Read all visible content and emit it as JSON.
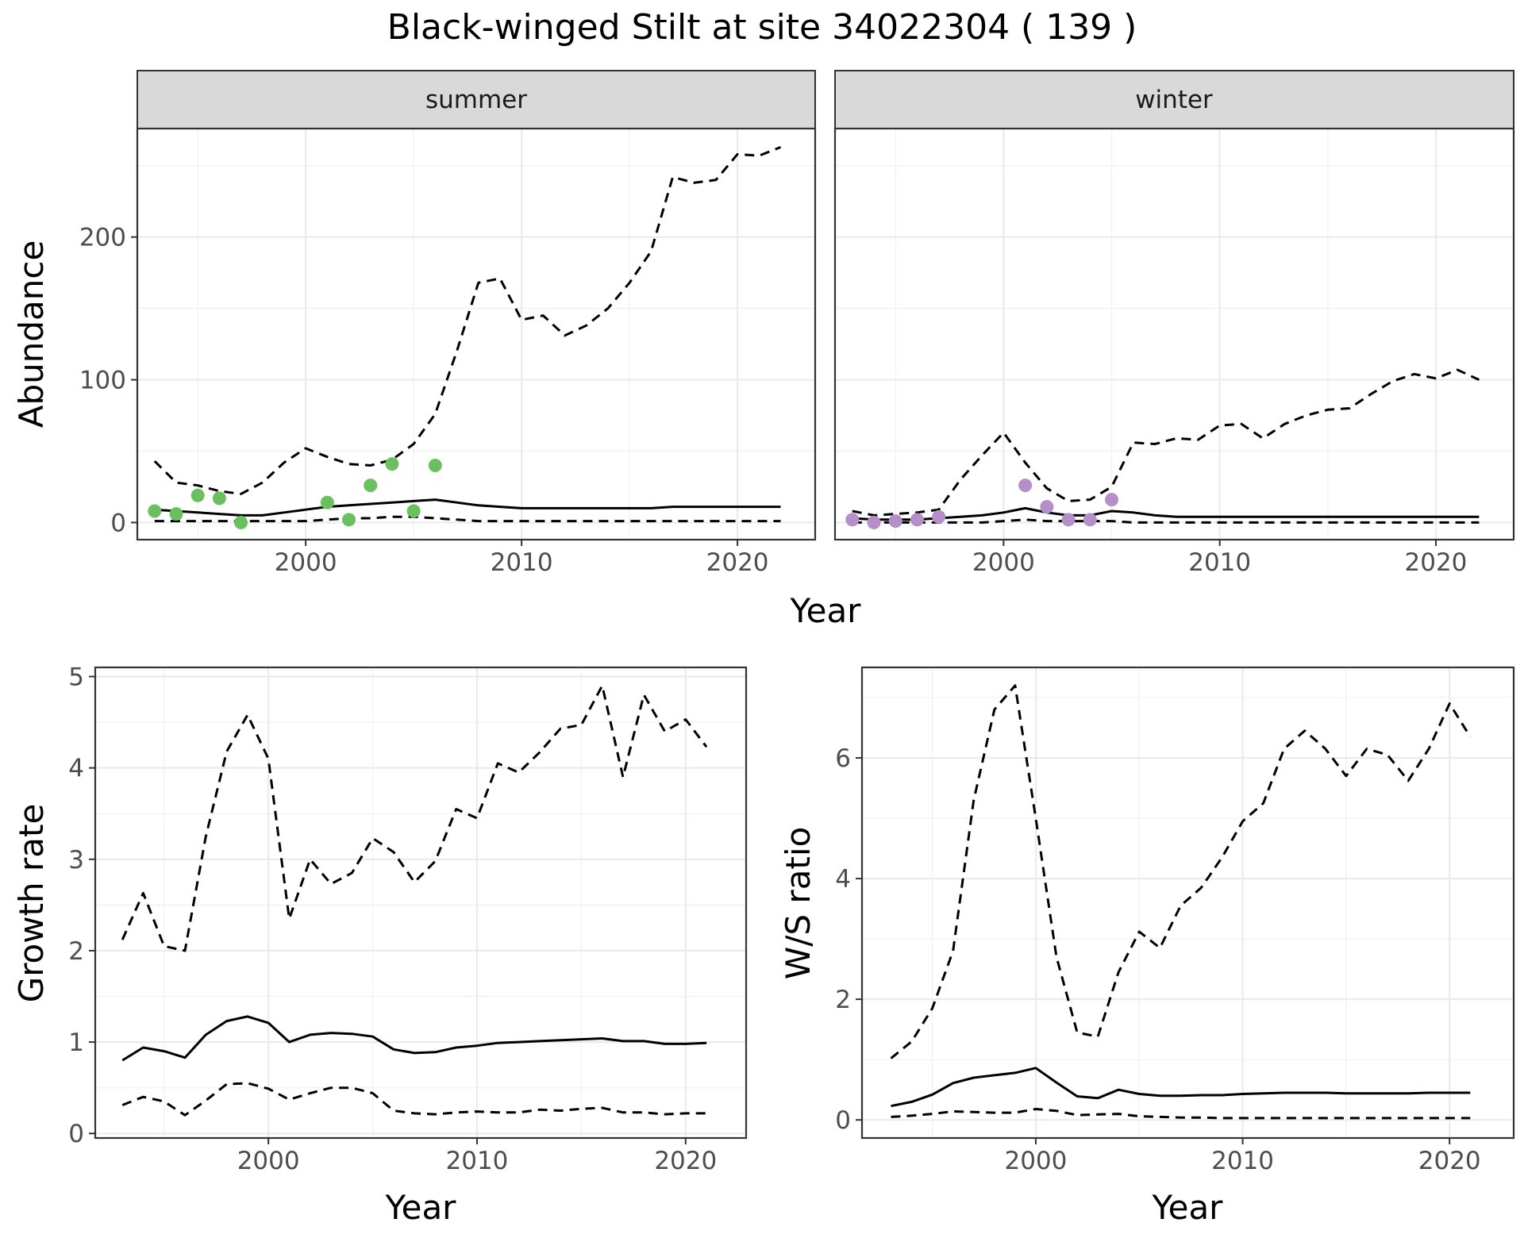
{
  "figure": {
    "title": "Black-winged Stilt at site 34022304 ( 139 )"
  },
  "chart_data": [
    {
      "id": "abundance",
      "type": "line",
      "facets": [
        "summer",
        "winter"
      ],
      "xlabel": "Year",
      "ylabel": "Abundance",
      "xlim": [
        1992.2,
        2023.6
      ],
      "ylim": [
        -12,
        276
      ],
      "xticks": [
        2000,
        2010,
        2020
      ],
      "yticks": [
        0,
        100,
        200
      ],
      "grid": true,
      "panels": [
        {
          "facet": "summer",
          "series": [
            {
              "role": "upper",
              "style": "dashed",
              "color": "#000000",
              "x": [
                1993,
                1994,
                1995,
                1996,
                1997,
                1998,
                1999,
                2000,
                2001,
                2002,
                2003,
                2004,
                2005,
                2006,
                2007,
                2008,
                2009,
                2010,
                2011,
                2012,
                2013,
                2014,
                2015,
                2016,
                2017,
                2018,
                2019,
                2020,
                2021,
                2022
              ],
              "y": [
                43,
                28,
                26,
                22,
                20,
                28,
                42,
                52,
                46,
                41,
                40,
                44,
                55,
                76,
                120,
                168,
                171,
                142,
                145,
                131,
                138,
                150,
                168,
                190,
                242,
                238,
                240,
                258,
                257,
                263
              ]
            },
            {
              "role": "estimate",
              "style": "solid",
              "color": "#000000",
              "x": [
                1993,
                1994,
                1995,
                1996,
                1997,
                1998,
                1999,
                2000,
                2001,
                2002,
                2003,
                2004,
                2005,
                2006,
                2007,
                2008,
                2009,
                2010,
                2011,
                2012,
                2013,
                2014,
                2015,
                2016,
                2017,
                2018,
                2019,
                2020,
                2021,
                2022
              ],
              "y": [
                9,
                8,
                7,
                6,
                5,
                5,
                7,
                9,
                11,
                12,
                13,
                14,
                15,
                16,
                14,
                12,
                11,
                10,
                10,
                10,
                10,
                10,
                10,
                10,
                11,
                11,
                11,
                11,
                11,
                11
              ]
            },
            {
              "role": "lower",
              "style": "dashed",
              "color": "#000000",
              "x": [
                1993,
                1994,
                1995,
                1996,
                1997,
                1998,
                1999,
                2000,
                2001,
                2002,
                2003,
                2004,
                2005,
                2006,
                2007,
                2008,
                2009,
                2010,
                2011,
                2012,
                2013,
                2014,
                2015,
                2016,
                2017,
                2018,
                2019,
                2020,
                2021,
                2022
              ],
              "y": [
                1,
                1,
                1,
                1,
                1,
                1,
                1,
                1,
                2,
                3,
                3,
                4,
                4,
                3,
                2,
                1,
                1,
                1,
                1,
                1,
                1,
                1,
                1,
                1,
                1,
                1,
                1,
                1,
                1,
                1
              ]
            }
          ],
          "points": {
            "color": "#6ABF5E",
            "x": [
              1993,
              1994,
              1995,
              1996,
              1997,
              2001,
              2002,
              2003,
              2004,
              2005,
              2006
            ],
            "y": [
              8,
              6,
              19,
              17,
              0,
              14,
              2,
              26,
              41,
              8,
              40
            ]
          }
        },
        {
          "facet": "winter",
          "series": [
            {
              "role": "upper",
              "style": "dashed",
              "color": "#000000",
              "x": [
                1993,
                1994,
                1995,
                1996,
                1997,
                1998,
                1999,
                2000,
                2001,
                2002,
                2003,
                2004,
                2005,
                2006,
                2007,
                2008,
                2009,
                2010,
                2011,
                2012,
                2013,
                2014,
                2015,
                2016,
                2017,
                2018,
                2019,
                2020,
                2021,
                2022
              ],
              "y": [
                8,
                5,
                6,
                7,
                9,
                30,
                47,
                63,
                42,
                24,
                15,
                16,
                25,
                56,
                55,
                59,
                58,
                68,
                69,
                59,
                69,
                75,
                79,
                80,
                90,
                99,
                104,
                101,
                107,
                100
              ]
            },
            {
              "role": "estimate",
              "style": "solid",
              "color": "#000000",
              "x": [
                1993,
                1994,
                1995,
                1996,
                1997,
                1998,
                1999,
                2000,
                2001,
                2002,
                2003,
                2004,
                2005,
                2006,
                2007,
                2008,
                2009,
                2010,
                2011,
                2012,
                2013,
                2014,
                2015,
                2016,
                2017,
                2018,
                2019,
                2020,
                2021,
                2022
              ],
              "y": [
                3,
                2,
                2,
                2,
                3,
                4,
                5,
                7,
                10,
                7,
                5,
                5,
                8,
                7,
                5,
                4,
                4,
                4,
                4,
                4,
                4,
                4,
                4,
                4,
                4,
                4,
                4,
                4,
                4,
                4
              ]
            },
            {
              "role": "lower",
              "style": "dashed",
              "color": "#000000",
              "x": [
                1993,
                1994,
                1995,
                1996,
                1997,
                1998,
                1999,
                2000,
                2001,
                2002,
                2003,
                2004,
                2005,
                2006,
                2007,
                2008,
                2009,
                2010,
                2011,
                2012,
                2013,
                2014,
                2015,
                2016,
                2017,
                2018,
                2019,
                2020,
                2021,
                2022
              ],
              "y": [
                0,
                0,
                0,
                0,
                0,
                0,
                0,
                1,
                2,
                1,
                1,
                1,
                1,
                0,
                0,
                0,
                0,
                0,
                0,
                0,
                0,
                0,
                0,
                0,
                0,
                0,
                0,
                0,
                0,
                0
              ]
            }
          ],
          "points": {
            "color": "#B48FC8",
            "x": [
              1993,
              1994,
              1995,
              1996,
              1997,
              2001,
              2002,
              2003,
              2004,
              2005
            ],
            "y": [
              2,
              0,
              1,
              2,
              4,
              26,
              11,
              2,
              2,
              16
            ]
          }
        }
      ]
    },
    {
      "id": "growth",
      "type": "line",
      "xlabel": "Year",
      "ylabel": "Growth rate",
      "xlim": [
        1991.7,
        2022.9
      ],
      "ylim": [
        -0.05,
        5.1
      ],
      "xticks": [
        2000,
        2010,
        2020
      ],
      "yticks": [
        0,
        1,
        2,
        3,
        4,
        5
      ],
      "grid": true,
      "series": [
        {
          "role": "upper",
          "style": "dashed",
          "color": "#000000",
          "x": [
            1993,
            1994,
            1995,
            1996,
            1997,
            1998,
            1999,
            2000,
            2001,
            2002,
            2003,
            2004,
            2005,
            2006,
            2007,
            2008,
            2009,
            2010,
            2011,
            2012,
            2013,
            2014,
            2015,
            2016,
            2017,
            2018,
            2019,
            2020,
            2021
          ],
          "y": [
            2.12,
            2.63,
            2.05,
            2.0,
            3.25,
            4.18,
            4.58,
            4.1,
            2.35,
            3.0,
            2.73,
            2.85,
            3.23,
            3.08,
            2.75,
            2.98,
            3.55,
            3.45,
            4.05,
            3.95,
            4.17,
            4.43,
            4.47,
            4.9,
            3.9,
            4.8,
            4.4,
            4.53,
            4.23
          ]
        },
        {
          "role": "estimate",
          "style": "solid",
          "color": "#000000",
          "x": [
            1993,
            1994,
            1995,
            1996,
            1997,
            1998,
            1999,
            2000,
            2001,
            2002,
            2003,
            2004,
            2005,
            2006,
            2007,
            2008,
            2009,
            2010,
            2011,
            2012,
            2013,
            2014,
            2015,
            2016,
            2017,
            2018,
            2019,
            2020,
            2021
          ],
          "y": [
            0.8,
            0.94,
            0.9,
            0.83,
            1.08,
            1.23,
            1.28,
            1.21,
            1.0,
            1.08,
            1.1,
            1.09,
            1.06,
            0.92,
            0.88,
            0.89,
            0.94,
            0.96,
            0.99,
            1.0,
            1.01,
            1.02,
            1.03,
            1.04,
            1.01,
            1.01,
            0.98,
            0.98,
            0.99
          ]
        },
        {
          "role": "lower",
          "style": "dashed",
          "color": "#000000",
          "x": [
            1993,
            1994,
            1995,
            1996,
            1997,
            1998,
            1999,
            2000,
            2001,
            2002,
            2003,
            2004,
            2005,
            2006,
            2007,
            2008,
            2009,
            2010,
            2011,
            2012,
            2013,
            2014,
            2015,
            2016,
            2017,
            2018,
            2019,
            2020,
            2021
          ],
          "y": [
            0.31,
            0.4,
            0.35,
            0.2,
            0.36,
            0.54,
            0.55,
            0.49,
            0.37,
            0.44,
            0.5,
            0.5,
            0.44,
            0.25,
            0.22,
            0.21,
            0.23,
            0.24,
            0.23,
            0.23,
            0.26,
            0.25,
            0.27,
            0.28,
            0.23,
            0.23,
            0.21,
            0.22,
            0.22
          ]
        }
      ]
    },
    {
      "id": "ws_ratio",
      "type": "line",
      "xlabel": "Year",
      "ylabel": "W/S ratio",
      "xlim": [
        1991.6,
        2023.1
      ],
      "ylim": [
        -0.3,
        7.5
      ],
      "xticks": [
        2000,
        2010,
        2020
      ],
      "yticks": [
        0,
        2,
        4,
        6
      ],
      "grid": true,
      "series": [
        {
          "role": "upper",
          "style": "dashed",
          "color": "#000000",
          "x": [
            1993,
            1994,
            1995,
            1996,
            1997,
            1998,
            1999,
            2000,
            2001,
            2002,
            2003,
            2004,
            2005,
            2006,
            2007,
            2008,
            2009,
            2010,
            2011,
            2012,
            2013,
            2014,
            2015,
            2016,
            2017,
            2018,
            2019,
            2020,
            2021
          ],
          "y": [
            1.02,
            1.3,
            1.85,
            2.8,
            5.3,
            6.8,
            7.2,
            5.0,
            2.7,
            1.45,
            1.38,
            2.45,
            3.12,
            2.85,
            3.55,
            3.85,
            4.35,
            4.95,
            5.25,
            6.15,
            6.45,
            6.15,
            5.7,
            6.15,
            6.05,
            5.62,
            6.15,
            6.9,
            6.35
          ]
        },
        {
          "role": "estimate",
          "style": "solid",
          "color": "#000000",
          "x": [
            1993,
            1994,
            1995,
            1996,
            1997,
            1998,
            1999,
            2000,
            2001,
            2002,
            2003,
            2004,
            2005,
            2006,
            2007,
            2008,
            2009,
            2010,
            2011,
            2012,
            2013,
            2014,
            2015,
            2016,
            2017,
            2018,
            2019,
            2020,
            2021
          ],
          "y": [
            0.23,
            0.3,
            0.42,
            0.61,
            0.7,
            0.74,
            0.78,
            0.86,
            0.62,
            0.39,
            0.36,
            0.5,
            0.43,
            0.4,
            0.4,
            0.41,
            0.41,
            0.43,
            0.44,
            0.45,
            0.45,
            0.45,
            0.44,
            0.44,
            0.44,
            0.44,
            0.45,
            0.45,
            0.45
          ]
        },
        {
          "role": "lower",
          "style": "dashed",
          "color": "#000000",
          "x": [
            1993,
            1994,
            1995,
            1996,
            1997,
            1998,
            1999,
            2000,
            2001,
            2002,
            2003,
            2004,
            2005,
            2006,
            2007,
            2008,
            2009,
            2010,
            2011,
            2012,
            2013,
            2014,
            2015,
            2016,
            2017,
            2018,
            2019,
            2020,
            2021
          ],
          "y": [
            0.05,
            0.07,
            0.1,
            0.14,
            0.13,
            0.12,
            0.12,
            0.18,
            0.15,
            0.08,
            0.09,
            0.1,
            0.06,
            0.05,
            0.04,
            0.04,
            0.03,
            0.03,
            0.03,
            0.03,
            0.03,
            0.03,
            0.03,
            0.03,
            0.03,
            0.03,
            0.03,
            0.03,
            0.03
          ]
        }
      ]
    }
  ]
}
